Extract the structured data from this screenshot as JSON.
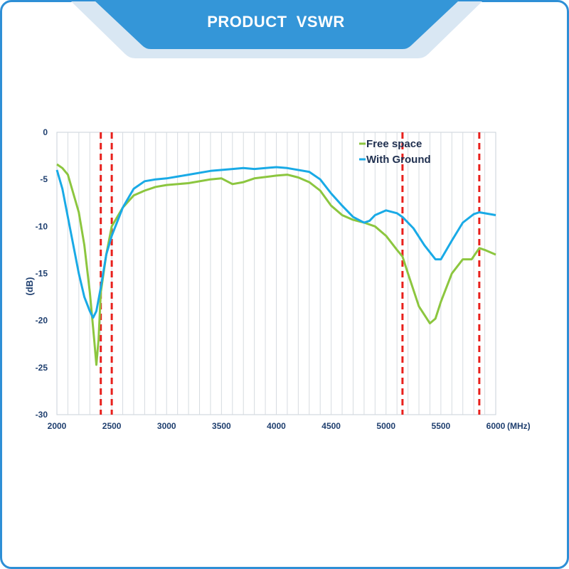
{
  "banner": {
    "title": "PRODUCT  VSWR"
  },
  "colors": {
    "frame": "#2e8fd6",
    "banner": "#3496d8",
    "free_space": "#8cc63f",
    "with_ground": "#19aae6",
    "marker": "#e8201c",
    "axis_text": "#1f3f6f"
  },
  "chart_data": {
    "type": "line",
    "title": "",
    "xlabel": "(MHz)",
    "ylabel": "(dB)",
    "xlim": [
      2000,
      6000
    ],
    "ylim": [
      -30,
      0
    ],
    "grid": true,
    "legend_position": "top-right",
    "x_ticks": [
      "2000",
      "2500",
      "3000",
      "3500",
      "4000",
      "4500",
      "5000",
      "5500",
      "6000"
    ],
    "y_ticks": [
      "0",
      "-5",
      "-10",
      "-15",
      "-20",
      "-25",
      "-30"
    ],
    "reference_lines_x": [
      2400,
      2500,
      5150,
      5850
    ],
    "series": [
      {
        "name": "Free space",
        "color": "#8cc63f",
        "points": [
          [
            2000,
            -3.4
          ],
          [
            2050,
            -3.8
          ],
          [
            2100,
            -4.5
          ],
          [
            2150,
            -6.5
          ],
          [
            2200,
            -8.5
          ],
          [
            2250,
            -12
          ],
          [
            2300,
            -17
          ],
          [
            2340,
            -22
          ],
          [
            2360,
            -24.7
          ],
          [
            2380,
            -22
          ],
          [
            2400,
            -17
          ],
          [
            2450,
            -13
          ],
          [
            2500,
            -10
          ],
          [
            2600,
            -8
          ],
          [
            2700,
            -6.7
          ],
          [
            2800,
            -6.2
          ],
          [
            2900,
            -5.8
          ],
          [
            3000,
            -5.6
          ],
          [
            3200,
            -5.4
          ],
          [
            3400,
            -5.0
          ],
          [
            3500,
            -4.9
          ],
          [
            3600,
            -5.5
          ],
          [
            3700,
            -5.3
          ],
          [
            3800,
            -4.9
          ],
          [
            4000,
            -4.6
          ],
          [
            4100,
            -4.5
          ],
          [
            4200,
            -4.8
          ],
          [
            4300,
            -5.3
          ],
          [
            4400,
            -6.2
          ],
          [
            4500,
            -7.8
          ],
          [
            4600,
            -8.8
          ],
          [
            4700,
            -9.3
          ],
          [
            4800,
            -9.6
          ],
          [
            4900,
            -10
          ],
          [
            5000,
            -11
          ],
          [
            5100,
            -12.5
          ],
          [
            5150,
            -13.2
          ],
          [
            5200,
            -15
          ],
          [
            5300,
            -18.5
          ],
          [
            5400,
            -20.3
          ],
          [
            5450,
            -19.8
          ],
          [
            5500,
            -18
          ],
          [
            5600,
            -15
          ],
          [
            5700,
            -13.5
          ],
          [
            5780,
            -13.5
          ],
          [
            5850,
            -12.3
          ],
          [
            5900,
            -12.5
          ],
          [
            6000,
            -13
          ]
        ]
      },
      {
        "name": "With Ground",
        "color": "#19aae6",
        "points": [
          [
            2000,
            -4
          ],
          [
            2050,
            -6
          ],
          [
            2100,
            -9
          ],
          [
            2150,
            -12
          ],
          [
            2200,
            -15
          ],
          [
            2250,
            -17.5
          ],
          [
            2300,
            -19
          ],
          [
            2330,
            -19.7
          ],
          [
            2360,
            -19
          ],
          [
            2400,
            -16.5
          ],
          [
            2450,
            -13
          ],
          [
            2500,
            -11
          ],
          [
            2600,
            -8
          ],
          [
            2700,
            -6
          ],
          [
            2800,
            -5.2
          ],
          [
            2900,
            -5
          ],
          [
            3000,
            -4.9
          ],
          [
            3200,
            -4.5
          ],
          [
            3400,
            -4.1
          ],
          [
            3600,
            -3.9
          ],
          [
            3700,
            -3.8
          ],
          [
            3800,
            -3.9
          ],
          [
            4000,
            -3.7
          ],
          [
            4100,
            -3.8
          ],
          [
            4300,
            -4.2
          ],
          [
            4400,
            -5
          ],
          [
            4500,
            -6.5
          ],
          [
            4600,
            -7.8
          ],
          [
            4700,
            -9
          ],
          [
            4800,
            -9.6
          ],
          [
            4850,
            -9.4
          ],
          [
            4900,
            -8.8
          ],
          [
            5000,
            -8.3
          ],
          [
            5100,
            -8.6
          ],
          [
            5150,
            -9
          ],
          [
            5250,
            -10.2
          ],
          [
            5350,
            -12
          ],
          [
            5450,
            -13.5
          ],
          [
            5500,
            -13.5
          ],
          [
            5600,
            -11.5
          ],
          [
            5700,
            -9.6
          ],
          [
            5800,
            -8.7
          ],
          [
            5850,
            -8.5
          ],
          [
            5950,
            -8.7
          ],
          [
            6000,
            -8.8
          ]
        ]
      }
    ]
  }
}
